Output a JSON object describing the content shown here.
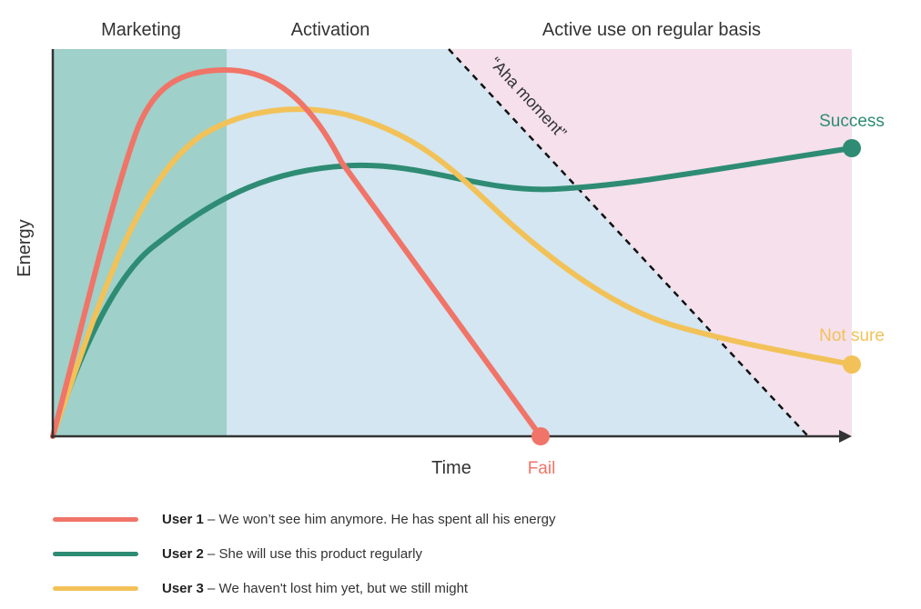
{
  "phases": {
    "marketing": "Marketing",
    "activation": "Activation",
    "active_use": "Active use on regular basis"
  },
  "axes": {
    "y_label": "Energy",
    "x_label": "Time"
  },
  "aha_label": "“Aha moment”",
  "outcomes": {
    "success": "Success",
    "not_sure": "Not sure",
    "fail": "Fail"
  },
  "legend": [
    {
      "user": "User 1",
      "text": " – We won’t see him anymore. He has spent all his energy",
      "color": "#f07468"
    },
    {
      "user": "User 2",
      "text": " – She will use this product regularly",
      "color": "#2e8c74"
    },
    {
      "user": "User 3",
      "text": " – We haven't lost him yet, but we still might",
      "color": "#f2c259"
    }
  ],
  "colors": {
    "marketing_bg": "#9fd0c9",
    "activation_bg": "#d3e6f1",
    "active_use_bg": "#f5e0ec",
    "user1": "#f07468",
    "user2": "#2e8c74",
    "user3": "#f2c259",
    "axis": "#333333"
  }
}
